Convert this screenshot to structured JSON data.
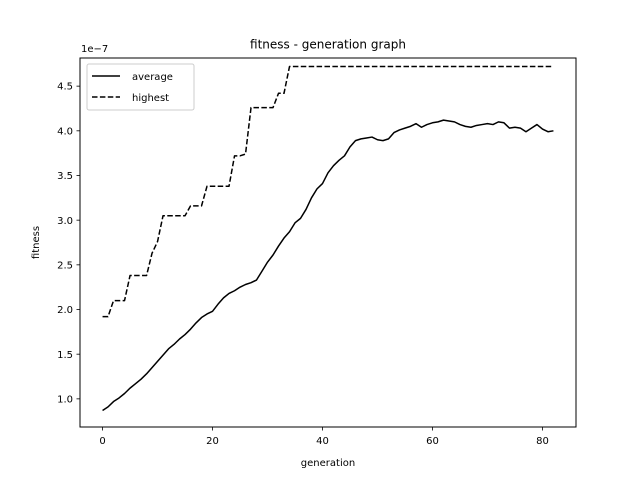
{
  "chart_data": {
    "type": "line",
    "title": "fitness - generation graph",
    "xlabel": "generation",
    "ylabel": "fitness",
    "y_offset_label": "1e−7",
    "xlim": [
      -4.1,
      86.1
    ],
    "ylim": [
      0.685,
      4.815
    ],
    "xticks": [
      0,
      20,
      40,
      60,
      80
    ],
    "yticks": [
      1.0,
      1.5,
      2.0,
      2.5,
      3.0,
      3.5,
      4.0,
      4.5
    ],
    "ytick_labels": [
      "1.0",
      "1.5",
      "2.0",
      "2.5",
      "3.0",
      "3.5",
      "4.0",
      "4.5"
    ],
    "grid": false,
    "legend_position": "upper-left",
    "series": [
      {
        "name": "average",
        "style": "solid",
        "color": "#000000",
        "x": [
          0,
          1,
          2,
          3,
          4,
          5,
          6,
          7,
          8,
          9,
          10,
          11,
          12,
          13,
          14,
          15,
          16,
          17,
          18,
          19,
          20,
          21,
          22,
          23,
          24,
          25,
          26,
          27,
          28,
          29,
          30,
          31,
          32,
          33,
          34,
          35,
          36,
          37,
          38,
          39,
          40,
          41,
          42,
          43,
          44,
          45,
          46,
          47,
          48,
          49,
          50,
          51,
          52,
          53,
          54,
          55,
          56,
          57,
          58,
          59,
          60,
          61,
          62,
          63,
          64,
          65,
          66,
          67,
          68,
          69,
          70,
          71,
          72,
          73,
          74,
          75,
          76,
          77,
          78,
          79,
          80,
          81,
          82
        ],
        "y": [
          0.87,
          0.91,
          0.97,
          1.01,
          1.06,
          1.12,
          1.17,
          1.22,
          1.28,
          1.35,
          1.42,
          1.49,
          1.56,
          1.61,
          1.67,
          1.72,
          1.78,
          1.85,
          1.91,
          1.95,
          1.98,
          2.06,
          2.13,
          2.18,
          2.21,
          2.25,
          2.28,
          2.3,
          2.33,
          2.43,
          2.53,
          2.61,
          2.71,
          2.8,
          2.87,
          2.97,
          3.02,
          3.12,
          3.25,
          3.35,
          3.41,
          3.53,
          3.61,
          3.67,
          3.72,
          3.82,
          3.89,
          3.91,
          3.92,
          3.93,
          3.9,
          3.89,
          3.91,
          3.98,
          4.01,
          4.03,
          4.05,
          4.08,
          4.04,
          4.07,
          4.09,
          4.1,
          4.12,
          4.11,
          4.1,
          4.07,
          4.05,
          4.04,
          4.06,
          4.07,
          4.08,
          4.07,
          4.1,
          4.09,
          4.03,
          4.04,
          4.03,
          3.99,
          4.03,
          4.07,
          4.02,
          3.99,
          4.0
        ]
      },
      {
        "name": "highest",
        "style": "dashed",
        "color": "#000000",
        "x": [
          0,
          1,
          2,
          3,
          4,
          5,
          6,
          7,
          8,
          9,
          10,
          11,
          12,
          13,
          14,
          15,
          16,
          17,
          18,
          19,
          20,
          21,
          22,
          23,
          24,
          25,
          26,
          27,
          28,
          29,
          30,
          31,
          32,
          33,
          34,
          35,
          36,
          37,
          38,
          39,
          40,
          41,
          42,
          43,
          44,
          45,
          46,
          47,
          48,
          49,
          50,
          51,
          52,
          53,
          54,
          55,
          56,
          57,
          58,
          59,
          60,
          61,
          62,
          63,
          64,
          65,
          66,
          67,
          68,
          69,
          70,
          71,
          72,
          73,
          74,
          75,
          76,
          77,
          78,
          79,
          80,
          81,
          82
        ],
        "y": [
          1.92,
          1.92,
          2.1,
          2.1,
          2.1,
          2.38,
          2.38,
          2.38,
          2.38,
          2.63,
          2.76,
          3.05,
          3.05,
          3.05,
          3.05,
          3.05,
          3.16,
          3.16,
          3.16,
          3.38,
          3.38,
          3.38,
          3.38,
          3.38,
          3.72,
          3.72,
          3.74,
          4.26,
          4.26,
          4.26,
          4.26,
          4.26,
          4.42,
          4.42,
          4.72,
          4.72,
          4.72,
          4.72,
          4.72,
          4.72,
          4.72,
          4.72,
          4.72,
          4.72,
          4.72,
          4.72,
          4.72,
          4.72,
          4.72,
          4.72,
          4.72,
          4.72,
          4.72,
          4.72,
          4.72,
          4.72,
          4.72,
          4.72,
          4.72,
          4.72,
          4.72,
          4.72,
          4.72,
          4.72,
          4.72,
          4.72,
          4.72,
          4.72,
          4.72,
          4.72,
          4.72,
          4.72,
          4.72,
          4.72,
          4.72,
          4.72,
          4.72,
          4.72,
          4.72,
          4.72,
          4.72,
          4.72,
          4.72
        ]
      }
    ]
  }
}
